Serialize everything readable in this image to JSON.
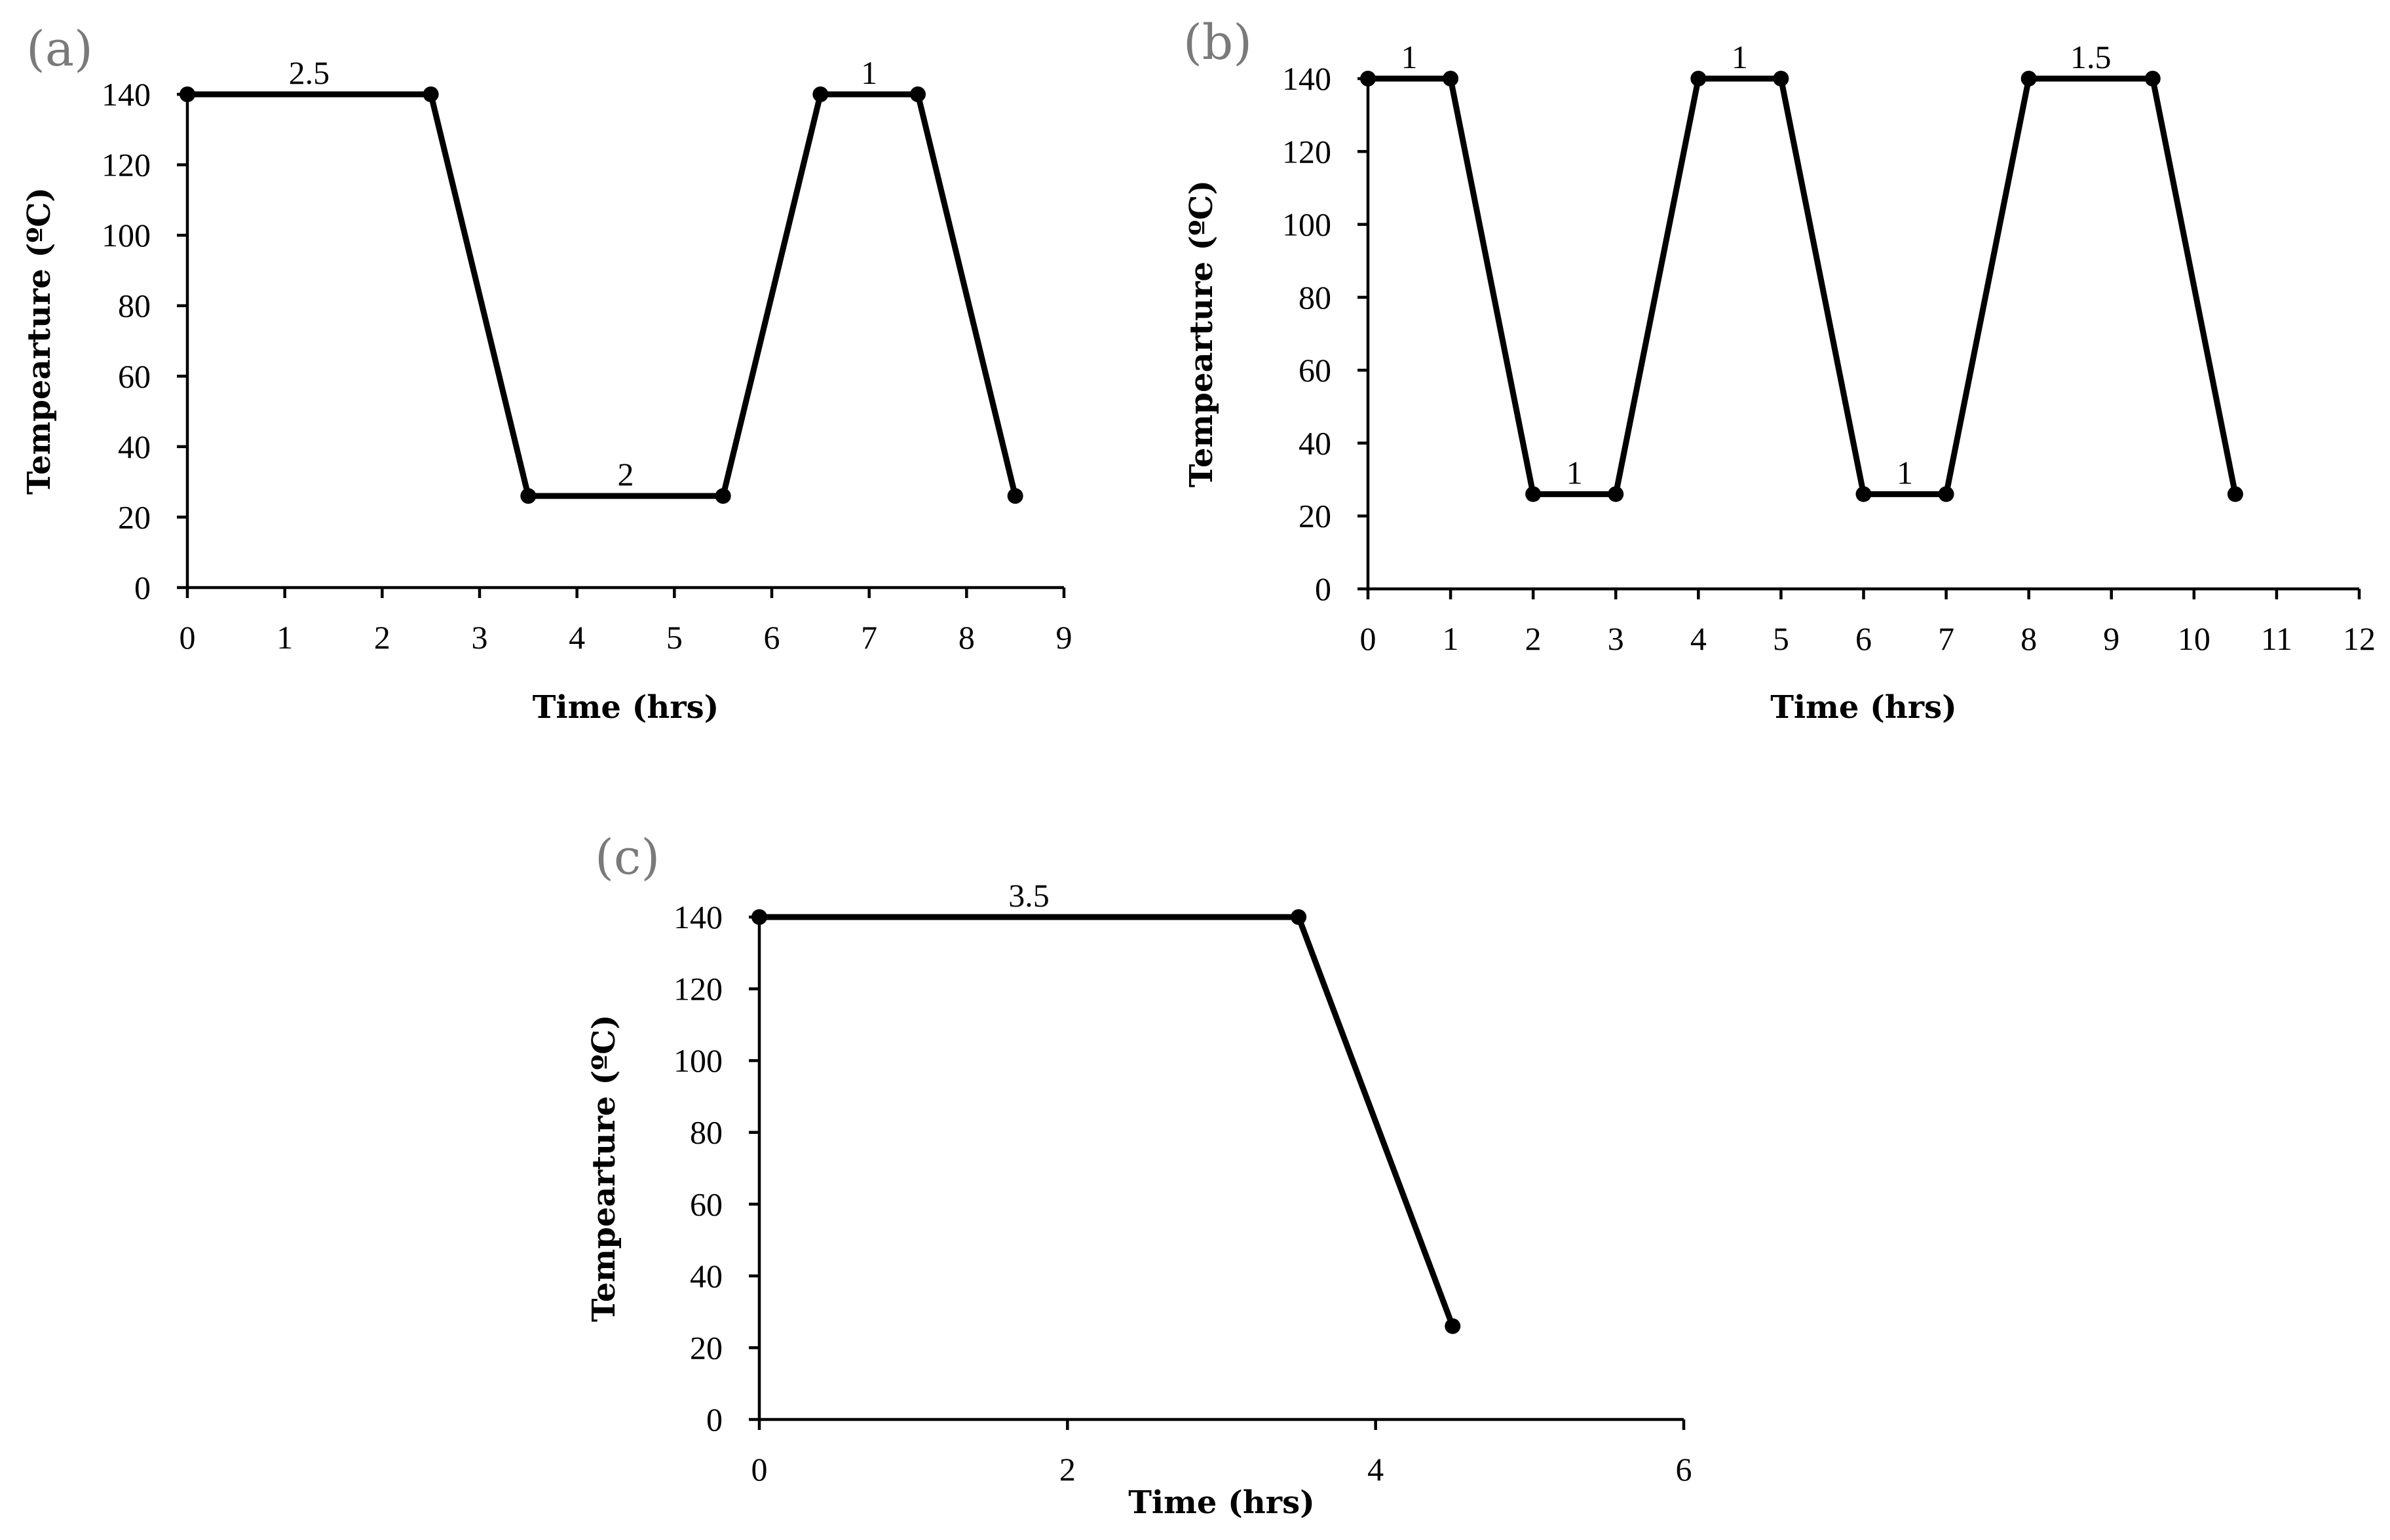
{
  "chart_data": [
    {
      "panel": "(a)",
      "type": "line",
      "xlabel": "Time (hrs)",
      "ylabel": "Tempearture (ºC)",
      "xlim": [
        0,
        9
      ],
      "ylim": [
        0,
        140
      ],
      "xticks": [
        0,
        1,
        2,
        3,
        4,
        5,
        6,
        7,
        8,
        9
      ],
      "yticks": [
        0,
        20,
        40,
        60,
        80,
        100,
        120,
        140
      ],
      "grid": false,
      "series": [
        {
          "x": [
            0,
            2.5,
            3.5,
            5.5,
            6.5,
            7.5,
            8.5
          ],
          "y": [
            140,
            140,
            26,
            26,
            140,
            140,
            26
          ]
        }
      ],
      "annotations": [
        {
          "text": "2.5",
          "x": 1.25,
          "y": 140
        },
        {
          "text": "2",
          "x": 4.5,
          "y": 26
        },
        {
          "text": "1",
          "x": 7,
          "y": 140
        }
      ]
    },
    {
      "panel": "(b)",
      "type": "line",
      "xlabel": "Time (hrs)",
      "ylabel": "Tempearture (ºC)",
      "xlim": [
        0,
        12
      ],
      "ylim": [
        0,
        140
      ],
      "xticks": [
        0,
        1,
        2,
        3,
        4,
        5,
        6,
        7,
        8,
        9,
        10,
        11,
        12
      ],
      "yticks": [
        0,
        20,
        40,
        60,
        80,
        100,
        120,
        140
      ],
      "grid": false,
      "series": [
        {
          "x": [
            0,
            1,
            2,
            3,
            4,
            5,
            6,
            7,
            8,
            9.5,
            10.5
          ],
          "y": [
            140,
            140,
            26,
            26,
            140,
            140,
            26,
            26,
            140,
            140,
            26
          ]
        }
      ],
      "annotations": [
        {
          "text": "1",
          "x": 0.5,
          "y": 140
        },
        {
          "text": "1",
          "x": 2.5,
          "y": 26
        },
        {
          "text": "1",
          "x": 4.5,
          "y": 140
        },
        {
          "text": "1",
          "x": 6.5,
          "y": 26
        },
        {
          "text": "1.5",
          "x": 8.75,
          "y": 140
        }
      ]
    },
    {
      "panel": "(c)",
      "type": "line",
      "xlabel": "Time (hrs)",
      "ylabel": "Tempearture (ºC)",
      "xlim": [
        0,
        6
      ],
      "ylim": [
        0,
        140
      ],
      "xticks": [
        0,
        2,
        4,
        6
      ],
      "yticks": [
        0,
        20,
        40,
        60,
        80,
        100,
        120,
        140
      ],
      "grid": false,
      "series": [
        {
          "x": [
            0,
            3.5,
            4.5
          ],
          "y": [
            140,
            140,
            26
          ]
        }
      ],
      "annotations": [
        {
          "text": "3.5",
          "x": 1.75,
          "y": 140
        }
      ]
    }
  ],
  "colors": {
    "line": "#000000",
    "axis": "#000000",
    "panel_letter": "#7a7a7a"
  }
}
